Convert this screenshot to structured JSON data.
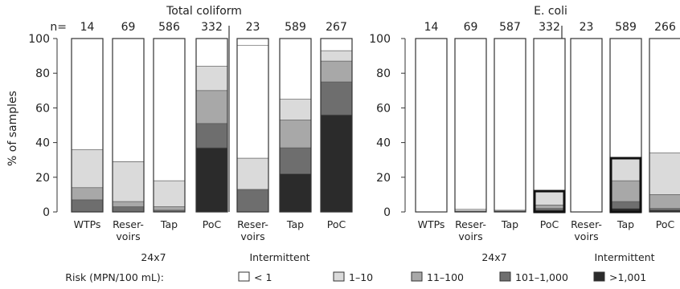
{
  "chart_data": [
    {
      "type": "bar",
      "stacked": true,
      "title": "Total coliform",
      "ylabel": "% of samples",
      "ylim": [
        0,
        100
      ],
      "yticks": [
        0,
        20,
        40,
        60,
        80,
        100
      ],
      "n_label": "n=",
      "categories": [
        "WTPs",
        "Reser-\nvoirs",
        "Tap",
        "PoC",
        "Reser-\nvoirs",
        "Tap",
        "PoC"
      ],
      "n": [
        "14",
        "69",
        "586",
        "332",
        "23",
        "589",
        "267"
      ],
      "groups": [
        {
          "label": "24x7",
          "categories": [
            0,
            1,
            2,
            3
          ]
        },
        {
          "label": "Intermittent",
          "categories": [
            4,
            5,
            6
          ]
        }
      ],
      "series": [
        {
          "name": ">1,001",
          "color": "#2b2b2b",
          "values": [
            0,
            0,
            0,
            37,
            0,
            22,
            56
          ]
        },
        {
          "name": "101–1,000",
          "color": "#6e6e6e",
          "values": [
            7,
            3,
            1,
            14,
            13,
            15,
            19
          ]
        },
        {
          "name": "11–100",
          "color": "#a8a8a8",
          "values": [
            7,
            3,
            2,
            19,
            0,
            16,
            12
          ]
        },
        {
          "name": "1–10",
          "color": "#dadada",
          "values": [
            22,
            23,
            15,
            14,
            18,
            12,
            6
          ]
        },
        {
          "name": "< 1",
          "color": "#ffffff",
          "values": [
            64,
            71,
            82,
            16,
            65,
            35,
            7
          ]
        }
      ]
    },
    {
      "type": "bar",
      "stacked": true,
      "title": "E. coli",
      "ylim": [
        0,
        100
      ],
      "yticks": [
        0,
        20,
        40,
        60,
        80,
        100
      ],
      "categories": [
        "WTPs",
        "Reser-\nvoirs",
        "Tap",
        "PoC",
        "Reser-\nvoirs",
        "Tap",
        "PoC"
      ],
      "n": [
        "14",
        "69",
        "587",
        "332",
        "23",
        "589",
        "266"
      ],
      "groups": [
        {
          "label": "24x7",
          "categories": [
            0,
            1,
            2,
            3
          ]
        },
        {
          "label": "Intermittent",
          "categories": [
            4,
            5,
            6
          ]
        }
      ],
      "series": [
        {
          "name": ">1,001",
          "color": "#2b2b2b",
          "values": [
            0,
            0,
            0.5,
            1,
            0,
            2,
            1
          ]
        },
        {
          "name": "101–1,000",
          "color": "#6e6e6e",
          "values": [
            0,
            0.5,
            0,
            1,
            0,
            4,
            1
          ]
        },
        {
          "name": "11–100",
          "color": "#a8a8a8",
          "values": [
            0,
            0,
            0,
            2,
            0,
            12,
            8
          ]
        },
        {
          "name": "1–10",
          "color": "#dadada",
          "values": [
            0,
            1,
            0.5,
            8,
            0,
            13,
            24
          ]
        },
        {
          "name": "< 1",
          "color": "#ffffff",
          "values": [
            100,
            98.5,
            99,
            88,
            100,
            69,
            66
          ]
        }
      ],
      "highlighted_categories": [
        3,
        5
      ]
    }
  ],
  "legend": {
    "title": "Risk (MPN/100 mL):",
    "items": [
      {
        "label": "< 1",
        "color": "#ffffff"
      },
      {
        "label": "1–10",
        "color": "#dadada"
      },
      {
        "label": "11–100",
        "color": "#a8a8a8"
      },
      {
        "label": "101–1,000",
        "color": "#6e6e6e"
      },
      {
        "label": ">1,001",
        "color": "#2b2b2b"
      }
    ]
  }
}
